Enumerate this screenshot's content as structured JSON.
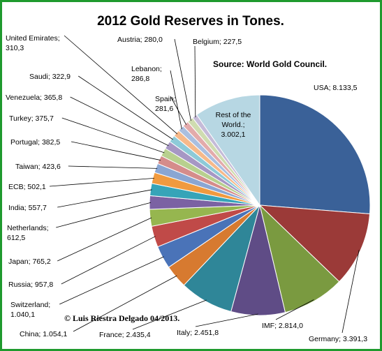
{
  "chart_data": {
    "type": "pie",
    "title": "2012 Gold Reserves in Tones.",
    "source": "Source: World Gold Council.",
    "credit": "© Luis Riestra Delgado 04/2013.",
    "slices": [
      {
        "label": "USA",
        "display": "USA; 8.133,5",
        "value": 8133.5,
        "color": "#3a6198"
      },
      {
        "label": "Germany",
        "display": "Germany; 3.391,3",
        "value": 3391.3,
        "color": "#9b3a38"
      },
      {
        "label": "IMF",
        "display": "IMF; 2.814,0",
        "value": 2814.0,
        "color": "#7a9a40"
      },
      {
        "label": "Italy",
        "display": "Italy; 2.451,8",
        "value": 2451.8,
        "color": "#5f4c86"
      },
      {
        "label": "France",
        "display": "France; 2.435,4",
        "value": 2435.4,
        "color": "#2f8698"
      },
      {
        "label": "China",
        "display": "China; 1.054,1",
        "value": 1054.1,
        "color": "#d77a30"
      },
      {
        "label": "Switzerland",
        "display": [
          "Switzerland;",
          "1.040,1"
        ],
        "value": 1040.1,
        "color": "#4a73b8"
      },
      {
        "label": "Russia",
        "display": "Russia; 957,8",
        "value": 957.8,
        "color": "#c04a48"
      },
      {
        "label": "Japan",
        "display": "Japan; 765,2",
        "value": 765.2,
        "color": "#96b64f"
      },
      {
        "label": "Netherlands",
        "display": [
          "Netherlands;",
          "612,5"
        ],
        "value": 612.5,
        "color": "#7b62a3"
      },
      {
        "label": "India",
        "display": "India; 557,7",
        "value": 557.7,
        "color": "#36a4b8"
      },
      {
        "label": "ECB",
        "display": "ECB; 502,1",
        "value": 502.1,
        "color": "#f09a3f"
      },
      {
        "label": "Taiwan",
        "display": "Taiwan; 423,6",
        "value": 423.6,
        "color": "#8aa6d3"
      },
      {
        "label": "Portugal",
        "display": "Portugal; 382,5",
        "value": 382.5,
        "color": "#d58c8b"
      },
      {
        "label": "Turkey",
        "display": "Turkey; 375,7",
        "value": 375.7,
        "color": "#b8d08e"
      },
      {
        "label": "Venezuela",
        "display": "Venezuela; 365,8",
        "value": 365.8,
        "color": "#a697c4"
      },
      {
        "label": "Saudi",
        "display": "Saudi; 322,9",
        "value": 322.9,
        "color": "#8dcad8"
      },
      {
        "label": "United Emirates",
        "display": [
          "United Emirates;",
          "310,3"
        ],
        "value": 310.3,
        "color": "#f6b98a"
      },
      {
        "label": "Lebanon",
        "display": [
          "Lebanon;",
          "286,8"
        ],
        "value": 286.8,
        "color": "#aabfe0"
      },
      {
        "label": "Spain",
        "display": [
          "Spain;",
          "281,6"
        ],
        "value": 281.6,
        "color": "#e3abab"
      },
      {
        "label": "Austria",
        "display": "Austria; 280,0",
        "value": 280.0,
        "color": "#cfdcb0"
      },
      {
        "label": "Belgium",
        "display": "Belgium; 227,5",
        "value": 227.5,
        "color": "#c5bbd8"
      },
      {
        "label": "Rest of the World.",
        "display": [
          "Rest of the",
          "World.;",
          "3.002,1"
        ],
        "value": 3002.1,
        "color": "#b7d7e3"
      }
    ]
  }
}
